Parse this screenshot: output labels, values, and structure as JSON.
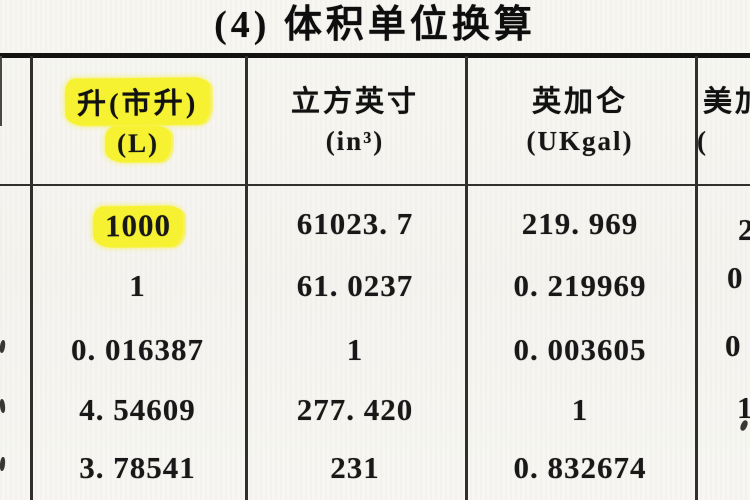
{
  "title": "(4) 体积单位换算",
  "colors": {
    "highlight_yellow": "#f2ee34",
    "paper": "#f1f0ec",
    "ink": "#1b1b1b",
    "line": "#34322e"
  },
  "table": {
    "columns": [
      {
        "id": "liter",
        "header": "升(市升)",
        "unit": "(L)",
        "values": [
          "1000",
          "1",
          "0. 016387",
          "4. 54609",
          "3. 78541"
        ]
      },
      {
        "id": "cubic-inch",
        "header": "立方英寸",
        "unit": "(in³)",
        "values": [
          "61023. 7",
          "61. 0237",
          "1",
          "277. 420",
          "231"
        ]
      },
      {
        "id": "uk-gallon",
        "header": "英加仑",
        "unit": "(UKgal)",
        "values": [
          "219. 969",
          "0. 219969",
          "0. 003605",
          "1",
          "0. 832674"
        ]
      },
      {
        "id": "us-gallon-clipped",
        "header": "美加",
        "unit": "(",
        "values": [
          "2",
          "0",
          "0",
          "1",
          ""
        ]
      }
    ]
  }
}
